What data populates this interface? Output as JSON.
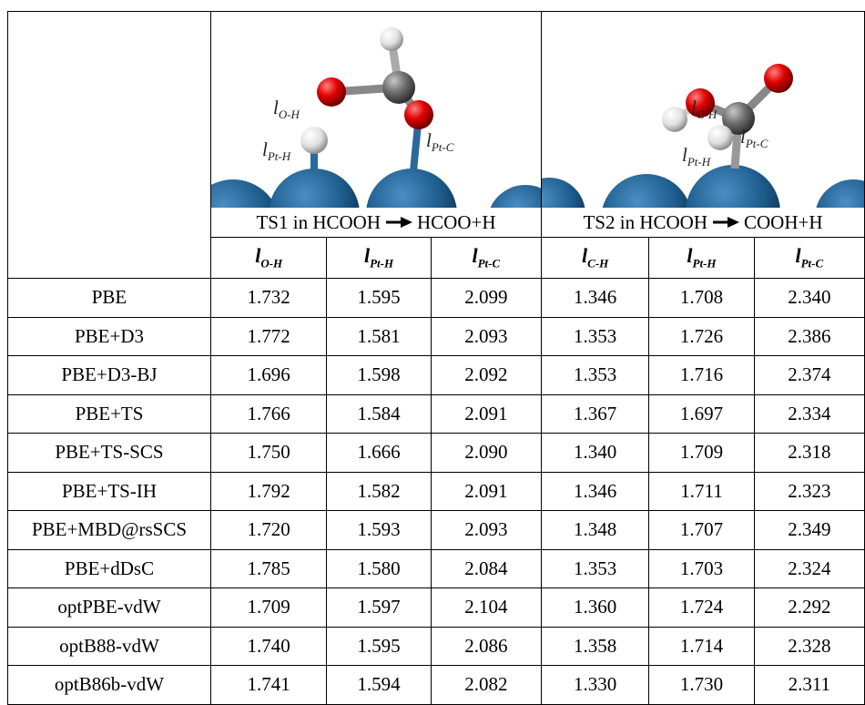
{
  "panels": [
    {
      "caption_left": "TS1 in HCOOH",
      "caption_right": "HCOO+H",
      "labels": [
        {
          "symbol": "l",
          "sub": "O-H"
        },
        {
          "symbol": "l",
          "sub": "Pt-H"
        },
        {
          "symbol": "l",
          "sub": "Pt-C"
        }
      ]
    },
    {
      "caption_left": "TS2 in HCOOH",
      "caption_right": "COOH+H",
      "labels": [
        {
          "symbol": "l",
          "sub": "C-H"
        },
        {
          "symbol": "l",
          "sub": "Pt-C"
        },
        {
          "symbol": "l",
          "sub": "Pt-H"
        }
      ]
    }
  ],
  "columns": [
    {
      "symbol": "l",
      "sub": "O-H"
    },
    {
      "symbol": "l",
      "sub": "Pt-H"
    },
    {
      "symbol": "l",
      "sub": "Pt-C"
    },
    {
      "symbol": "l",
      "sub": "C-H"
    },
    {
      "symbol": "l",
      "sub": "Pt-H"
    },
    {
      "symbol": "l",
      "sub": "Pt-C"
    }
  ],
  "rows": [
    {
      "method": "PBE",
      "values": [
        "1.732",
        "1.595",
        "2.099",
        "1.346",
        "1.708",
        "2.340"
      ]
    },
    {
      "method": "PBE+D3",
      "values": [
        "1.772",
        "1.581",
        "2.093",
        "1.353",
        "1.726",
        "2.386"
      ]
    },
    {
      "method": "PBE+D3-BJ",
      "values": [
        "1.696",
        "1.598",
        "2.092",
        "1.353",
        "1.716",
        "2.374"
      ]
    },
    {
      "method": "PBE+TS",
      "values": [
        "1.766",
        "1.584",
        "2.091",
        "1.367",
        "1.697",
        "2.334"
      ]
    },
    {
      "method": "PBE+TS-SCS",
      "values": [
        "1.750",
        "1.666",
        "2.090",
        "1.340",
        "1.709",
        "2.318"
      ]
    },
    {
      "method": "PBE+TS-IH",
      "values": [
        "1.792",
        "1.582",
        "2.091",
        "1.346",
        "1.711",
        "2.323"
      ]
    },
    {
      "method": "PBE+MBD@rsSCS",
      "values": [
        "1.720",
        "1.593",
        "2.093",
        "1.348",
        "1.707",
        "2.349"
      ]
    },
    {
      "method": "PBE+dDsC",
      "values": [
        "1.785",
        "1.580",
        "2.084",
        "1.353",
        "1.703",
        "2.324"
      ]
    },
    {
      "method": "optPBE-vdW",
      "values": [
        "1.709",
        "1.597",
        "2.104",
        "1.360",
        "1.724",
        "2.292"
      ]
    },
    {
      "method": "optB88-vdW",
      "values": [
        "1.740",
        "1.595",
        "2.086",
        "1.358",
        "1.714",
        "2.328"
      ]
    },
    {
      "method": "optB86b-vdW",
      "values": [
        "1.741",
        "1.594",
        "2.082",
        "1.330",
        "1.730",
        "2.311"
      ]
    }
  ]
}
